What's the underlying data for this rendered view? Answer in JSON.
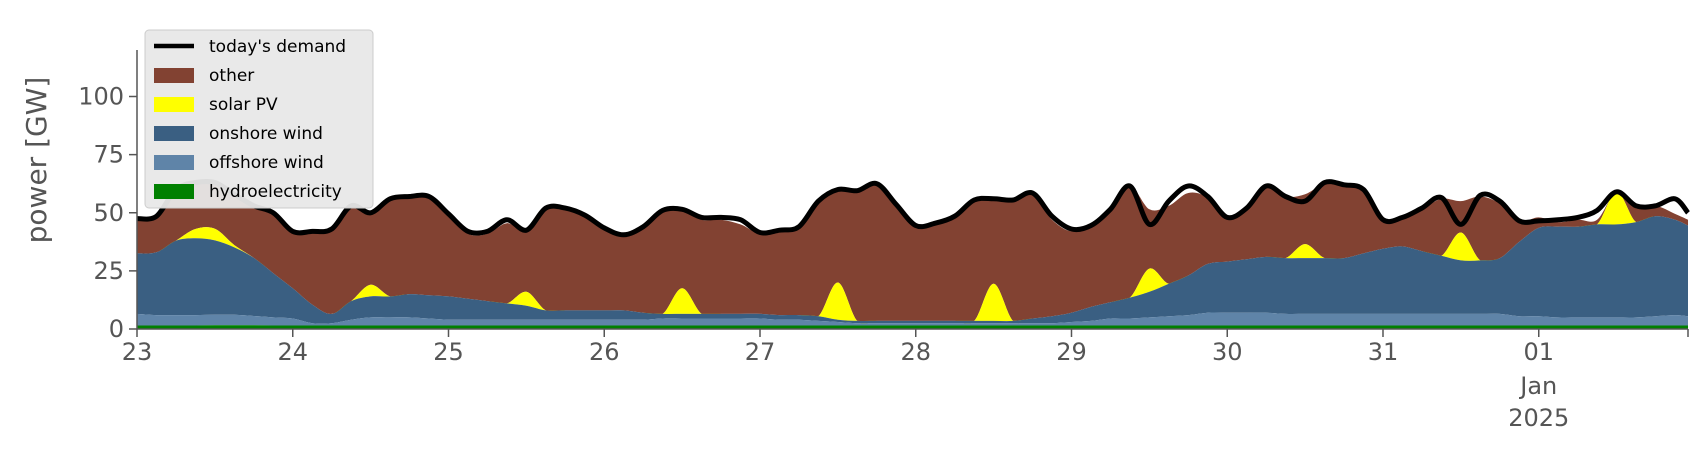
{
  "chart_data": {
    "type": "area",
    "title": "",
    "xlabel": "",
    "ylabel": "power [GW]",
    "ylim": [
      0,
      120
    ],
    "xlim": [
      "2024-12-23",
      "2025-01-01T23:00"
    ],
    "grid": false,
    "legend_position": "top-left",
    "x_ticks": [
      {
        "date": "2024-12-23",
        "label": "23",
        "sub": []
      },
      {
        "date": "2024-12-24",
        "label": "24",
        "sub": []
      },
      {
        "date": "2024-12-25",
        "label": "25",
        "sub": []
      },
      {
        "date": "2024-12-26",
        "label": "26",
        "sub": []
      },
      {
        "date": "2024-12-27",
        "label": "27",
        "sub": []
      },
      {
        "date": "2024-12-28",
        "label": "28",
        "sub": []
      },
      {
        "date": "2024-12-29",
        "label": "29",
        "sub": []
      },
      {
        "date": "2024-12-30",
        "label": "30",
        "sub": []
      },
      {
        "date": "2024-12-31",
        "label": "31",
        "sub": []
      },
      {
        "date": "2025-01-01",
        "label": "01",
        "sub": [
          "Jan",
          "2025"
        ]
      }
    ],
    "y_ticks": [
      0,
      25,
      50,
      75,
      100
    ],
    "x": [
      "2024-12-23T00:00",
      "2024-12-23T03:00",
      "2024-12-23T06:00",
      "2024-12-23T09:00",
      "2024-12-23T12:00",
      "2024-12-23T15:00",
      "2024-12-23T18:00",
      "2024-12-23T21:00",
      "2024-12-24T00:00",
      "2024-12-24T03:00",
      "2024-12-24T06:00",
      "2024-12-24T09:00",
      "2024-12-24T12:00",
      "2024-12-24T15:00",
      "2024-12-24T18:00",
      "2024-12-24T21:00",
      "2024-12-25T00:00",
      "2024-12-25T03:00",
      "2024-12-25T06:00",
      "2024-12-25T09:00",
      "2024-12-25T12:00",
      "2024-12-25T15:00",
      "2024-12-25T18:00",
      "2024-12-25T21:00",
      "2024-12-26T00:00",
      "2024-12-26T03:00",
      "2024-12-26T06:00",
      "2024-12-26T09:00",
      "2024-12-26T12:00",
      "2024-12-26T15:00",
      "2024-12-26T18:00",
      "2024-12-26T21:00",
      "2024-12-27T00:00",
      "2024-12-27T03:00",
      "2024-12-27T06:00",
      "2024-12-27T09:00",
      "2024-12-27T12:00",
      "2024-12-27T15:00",
      "2024-12-27T18:00",
      "2024-12-27T21:00",
      "2024-12-28T00:00",
      "2024-12-28T03:00",
      "2024-12-28T06:00",
      "2024-12-28T09:00",
      "2024-12-28T12:00",
      "2024-12-28T15:00",
      "2024-12-28T18:00",
      "2024-12-28T21:00",
      "2024-12-29T00:00",
      "2024-12-29T03:00",
      "2024-12-29T06:00",
      "2024-12-29T09:00",
      "2024-12-29T12:00",
      "2024-12-29T15:00",
      "2024-12-29T18:00",
      "2024-12-29T21:00",
      "2024-12-30T00:00",
      "2024-12-30T03:00",
      "2024-12-30T06:00",
      "2024-12-30T09:00",
      "2024-12-30T12:00",
      "2024-12-30T15:00",
      "2024-12-30T18:00",
      "2024-12-30T21:00",
      "2024-12-31T00:00",
      "2024-12-31T03:00",
      "2024-12-31T06:00",
      "2024-12-31T09:00",
      "2024-12-31T12:00",
      "2024-12-31T15:00",
      "2024-12-31T18:00",
      "2024-12-31T21:00",
      "2025-01-01T00:00",
      "2025-01-01T03:00",
      "2025-01-01T06:00",
      "2025-01-01T09:00",
      "2025-01-01T12:00",
      "2025-01-01T15:00",
      "2025-01-01T18:00",
      "2025-01-01T21:00",
      "2025-01-01T23:00"
    ],
    "series": [
      {
        "name": "hydroelectricity",
        "color": "#008000",
        "values": [
          1.5,
          1.5,
          1.5,
          1.5,
          1.6,
          1.6,
          1.6,
          1.5,
          1.5,
          1.5,
          1.5,
          1.5,
          1.5,
          1.5,
          1.5,
          1.5,
          1.5,
          1.5,
          1.5,
          1.5,
          1.5,
          1.5,
          1.5,
          1.5,
          1.5,
          1.5,
          1.5,
          1.5,
          1.5,
          1.5,
          1.5,
          1.5,
          1.5,
          1.5,
          1.5,
          1.5,
          1.5,
          1.5,
          1.5,
          1.5,
          1.5,
          1.5,
          1.5,
          1.5,
          1.5,
          1.5,
          1.5,
          1.5,
          1.5,
          1.5,
          1.5,
          1.5,
          1.5,
          1.5,
          1.5,
          1.5,
          1.5,
          1.5,
          1.5,
          1.5,
          1.5,
          1.5,
          1.5,
          1.5,
          1.5,
          1.5,
          1.5,
          1.5,
          1.5,
          1.5,
          1.5,
          1.5,
          1.5,
          1.5,
          1.5,
          1.5,
          1.5,
          1.5,
          1.5,
          1.5,
          1.5
        ]
      },
      {
        "name": "offshore wind",
        "color": "#5f84a8",
        "values": [
          5,
          4.5,
          4.5,
          4.5,
          4.5,
          4.5,
          4,
          3.5,
          3,
          1,
          1,
          2.5,
          3.5,
          3.5,
          3.5,
          3,
          2.5,
          2.5,
          2.5,
          2.5,
          2.5,
          2.5,
          2.5,
          2.5,
          2.5,
          2.5,
          2.5,
          3,
          3,
          3,
          3,
          3,
          3,
          2.5,
          2.5,
          2,
          1.5,
          1,
          1,
          1,
          1,
          1,
          1,
          1,
          1,
          1,
          1,
          1,
          1.5,
          2,
          3,
          3,
          3.5,
          4,
          4.5,
          5.5,
          5.5,
          5.5,
          5.5,
          5,
          5,
          5,
          5,
          5,
          5,
          5,
          5,
          5,
          5,
          5,
          5,
          4,
          4,
          3.5,
          3.5,
          3.5,
          3.5,
          3.5,
          4,
          4.5,
          4
        ]
      },
      {
        "name": "onshore wind",
        "color": "#3a5f82",
        "values": [
          26,
          27,
          32,
          33,
          32,
          29,
          25,
          19,
          13,
          8,
          4,
          8,
          9,
          9,
          10,
          10,
          10,
          9,
          8,
          7,
          6,
          4,
          4,
          4,
          4,
          4,
          3,
          2,
          2,
          2,
          2,
          2,
          2,
          2,
          2,
          2,
          1,
          1,
          1,
          1,
          1,
          1,
          1,
          1,
          1,
          1,
          2,
          3,
          4,
          6,
          7,
          9,
          11,
          14,
          17,
          21,
          22,
          23,
          24,
          24,
          24,
          24,
          24,
          26,
          28,
          29,
          27,
          25,
          23,
          23,
          24,
          32,
          38,
          39,
          39,
          40,
          40,
          41,
          43,
          41,
          39
        ]
      },
      {
        "name": "solar PV",
        "color": "#ffff00",
        "values": [
          0,
          0,
          0,
          4,
          5,
          1,
          0,
          0,
          0,
          0,
          0,
          0,
          5,
          0,
          0,
          0,
          0,
          0,
          0,
          0,
          6,
          0,
          0,
          0,
          0,
          0,
          0,
          0,
          11,
          0,
          0,
          0,
          0,
          0,
          0,
          0,
          16,
          0,
          0,
          0,
          0,
          0,
          0,
          0,
          16,
          0,
          0,
          0,
          0,
          0,
          0,
          0,
          10,
          0,
          0,
          0,
          0,
          0,
          0,
          0,
          6,
          0,
          0,
          0,
          0,
          0,
          0,
          0,
          12,
          0,
          0,
          0,
          0,
          0,
          0,
          0,
          14,
          0,
          0,
          0,
          0
        ]
      },
      {
        "name": "other",
        "color": "#824232",
        "values": [
          15,
          15.5,
          22.5,
          20,
          20,
          22.5,
          22.5,
          25.5,
          24.5,
          31.5,
          36.5,
          41.5,
          31.5,
          42,
          42,
          42.5,
          35.5,
          28,
          29,
          34.5,
          26.5,
          44,
          44,
          40.5,
          35.5,
          32.5,
          37.5,
          44,
          33.5,
          40.5,
          40.5,
          38.5,
          34.5,
          36.5,
          38.5,
          49.5,
          40.5,
          55.5,
          58.5,
          49.5,
          41.5,
          42.5,
          44.5,
          51.5,
          37.5,
          52.5,
          53.5,
          41.5,
          35,
          35,
          40,
          48,
          25.5,
          33.5,
          35.5,
          28.5,
          19,
          22,
          30.5,
          26.5,
          21.5,
          32,
          31.5,
          27.5,
          11.5,
          12.5,
          18,
          24.5,
          13.5,
          27.5,
          23.5,
          9,
          4.5,
          2,
          3,
          2,
          0,
          6,
          4.5,
          2.5,
          2.5
        ]
      },
      {
        "name": "today's demand",
        "color": "#000000",
        "values": [
          47.5,
          48.5,
          60,
          63,
          63,
          58,
          53,
          50,
          42,
          42,
          43,
          53,
          50,
          56,
          57,
          57,
          49.5,
          42,
          42,
          47,
          42.5,
          52,
          52,
          49,
          43.5,
          40.5,
          44,
          51,
          51.5,
          48,
          48,
          47,
          41.5,
          42.5,
          44,
          55,
          60,
          59.5,
          62.5,
          53.5,
          44.5,
          45.5,
          48.5,
          55.5,
          56,
          55.5,
          58.5,
          48.5,
          43,
          44.5,
          51.5,
          61.5,
          45,
          55,
          61.5,
          57,
          48,
          52,
          61.5,
          57,
          55,
          63,
          62,
          60,
          47,
          48,
          52,
          56.5,
          45,
          57.5,
          55,
          46.5,
          46.5,
          47,
          48,
          51,
          59,
          53,
          53,
          56,
          50
        ]
      }
    ]
  }
}
